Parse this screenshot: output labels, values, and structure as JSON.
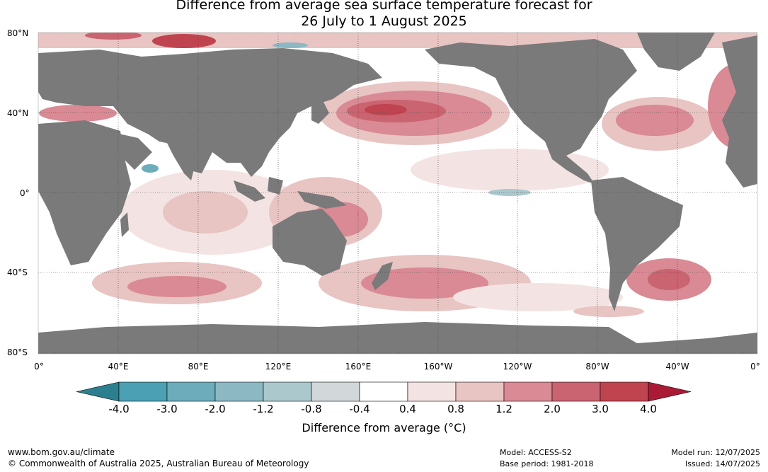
{
  "title": {
    "line1": "Difference from average sea surface temperature forecast for",
    "line2": "26 July to 1 August 2025"
  },
  "lat_labels": [
    "80°N",
    "40°N",
    "0°",
    "40°S",
    "80°S"
  ],
  "lon_labels": [
    "0°",
    "40°E",
    "80°E",
    "120°E",
    "160°E",
    "160°W",
    "120°W",
    "80°W",
    "40°W",
    "0°"
  ],
  "colorbar": {
    "title": "Difference from average (°C)",
    "ticks": [
      "-4.0",
      "-3.0",
      "-2.0",
      "-1.2",
      "-0.8",
      "-0.4",
      "0.4",
      "0.8",
      "1.2",
      "2.0",
      "3.0",
      "4.0"
    ],
    "colors": [
      "#2c7f8f",
      "#4ba0b3",
      "#6cacbb",
      "#8cb8c4",
      "#abc8cc",
      "#d2d8da",
      "#ffffff",
      "#f3e4e3",
      "#e8c4c2",
      "#d98a94",
      "#c96470",
      "#bf4450",
      "#aa1a35"
    ],
    "land_color": "#7a7a7a"
  },
  "footer": {
    "site": "www.bom.gov.au/climate",
    "copyright": "© Commonwealth of Australia 2025, Australian Bureau of Meteorology",
    "model": "Model: ACCESS-S2",
    "base_period": "Base period: 1981-2018",
    "model_run": "Model run: 12/07/2025",
    "issued": "Issued: 14/07/2025"
  }
}
